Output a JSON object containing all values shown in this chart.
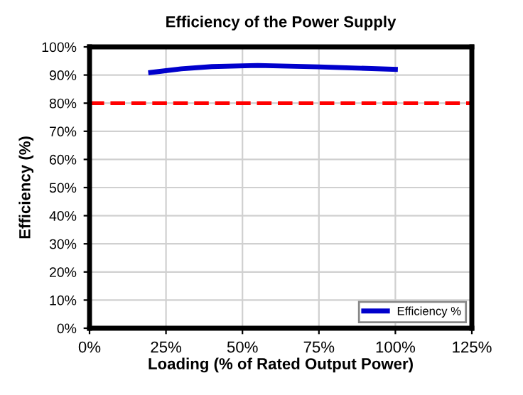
{
  "chart_data": {
    "type": "line",
    "title": "Efficiency of the Power Supply",
    "xlabel": "Loading (% of Rated Output Power)",
    "ylabel": "Efficiency (%)",
    "series": [
      {
        "name": "Efficiency %",
        "color": "#0000cc",
        "x": [
          20,
          30,
          40,
          55,
          75,
          100
        ],
        "values": [
          90.9,
          92.2,
          93.0,
          93.4,
          92.9,
          92.0
        ]
      }
    ],
    "xlim": [
      0,
      125
    ],
    "xticks": [
      {
        "value": 0,
        "label": "0%"
      },
      {
        "value": 25,
        "label": "25%"
      },
      {
        "value": 50,
        "label": "50%"
      },
      {
        "value": 75,
        "label": "75%"
      },
      {
        "value": 100,
        "label": "100%"
      },
      {
        "value": 125,
        "label": "125%"
      }
    ],
    "ylim": [
      0,
      100
    ],
    "yticks": [
      {
        "value": 0,
        "label": "0%"
      },
      {
        "value": 10,
        "label": "10%"
      },
      {
        "value": 20,
        "label": "20%"
      },
      {
        "value": 30,
        "label": "30%"
      },
      {
        "value": 40,
        "label": "40%"
      },
      {
        "value": 50,
        "label": "50%"
      },
      {
        "value": 60,
        "label": "60%"
      },
      {
        "value": 70,
        "label": "70%"
      },
      {
        "value": 80,
        "label": "80%"
      },
      {
        "value": 90,
        "label": "90%"
      },
      {
        "value": 100,
        "label": "100%"
      }
    ],
    "ref_lines": [
      {
        "axis": "y",
        "value": 80,
        "color": "#ff0000",
        "line_style": "dashed"
      }
    ],
    "grid": true,
    "legend": "bottom right",
    "marker": "none",
    "line_style": "solid"
  }
}
